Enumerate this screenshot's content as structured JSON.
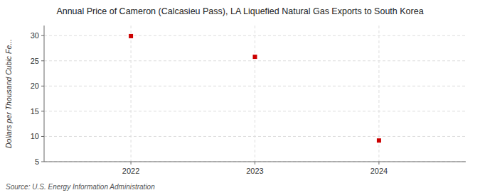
{
  "chart_data": {
    "type": "scatter",
    "title": "Annual Price of Cameron (Calcasieu Pass), LA Liquefied Natural Gas Exports to South Korea",
    "y_label": "Dollars per Thousand Cubic Fe...",
    "source": "Source: U.S. Energy Information Administration",
    "x": [
      2022,
      2023,
      2024
    ],
    "values": [
      29.9,
      25.8,
      9.2
    ],
    "color": "#cc0000",
    "marker": "square",
    "xlim": [
      2021.3,
      2024.7
    ],
    "xticks": [
      2022,
      2023,
      2024
    ],
    "ylim": [
      5,
      32
    ],
    "yticks": [
      5,
      10,
      15,
      20,
      25,
      30
    ],
    "grid": true
  }
}
